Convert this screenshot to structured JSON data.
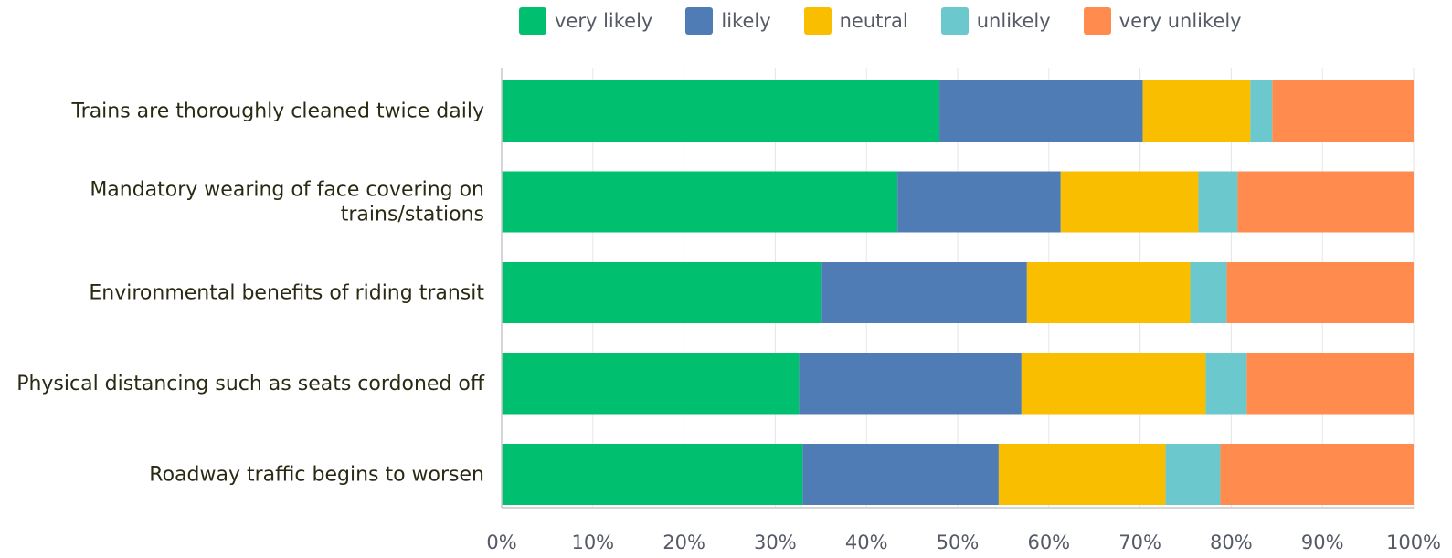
{
  "chart_data": {
    "type": "bar",
    "orientation": "horizontal",
    "stacked": true,
    "normalized_percent": true,
    "categories": [
      [
        "Trains are thoroughly cleaned twice daily"
      ],
      [
        "Mandatory wearing of face covering on",
        "trains/stations"
      ],
      [
        "Environmental benefits of riding transit"
      ],
      [
        "Physical distancing such as seats cordoned off"
      ],
      [
        "Roadway traffic begins to worsen"
      ]
    ],
    "series": [
      {
        "name": "very likely",
        "color": "#00BF6F",
        "values": [
          48.0,
          43.4,
          35.1,
          32.6,
          33.0
        ]
      },
      {
        "name": "likely",
        "color": "#507CB6",
        "values": [
          22.3,
          17.9,
          22.5,
          24.4,
          21.5
        ]
      },
      {
        "name": "neutral",
        "color": "#F9BE00",
        "values": [
          11.8,
          15.1,
          17.9,
          20.2,
          18.3
        ]
      },
      {
        "name": "unlikely",
        "color": "#6BC8CD",
        "values": [
          2.4,
          4.3,
          4.0,
          4.5,
          6.0
        ]
      },
      {
        "name": "very unlikely",
        "color": "#FF8B4F",
        "values": [
          15.5,
          19.3,
          20.5,
          18.3,
          21.2
        ]
      }
    ],
    "xlim": [
      0,
      100
    ],
    "xticks": [
      "0%",
      "10%",
      "20%",
      "30%",
      "40%",
      "50%",
      "60%",
      "70%",
      "80%",
      "90%",
      "100%"
    ],
    "grid": true,
    "legend_position": "top"
  }
}
